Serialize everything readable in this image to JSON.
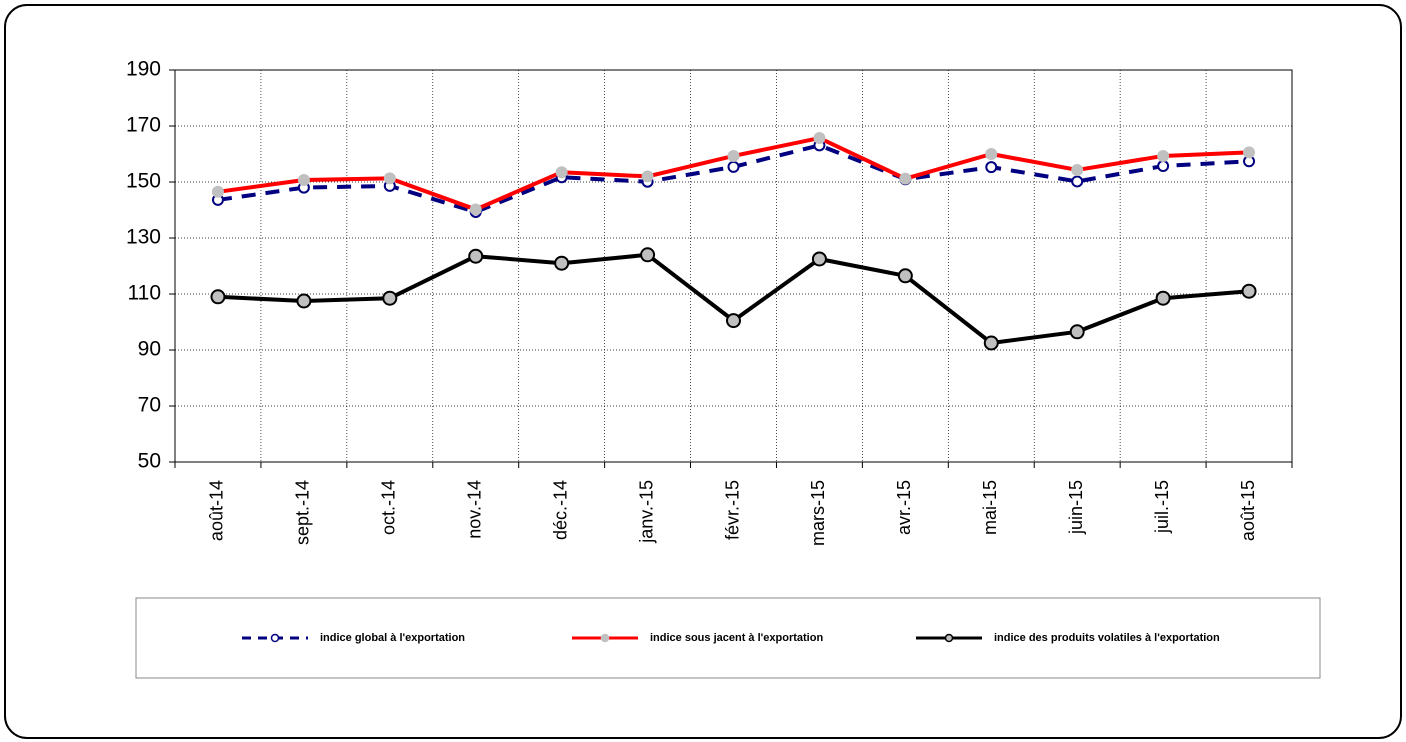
{
  "chart_data": {
    "type": "line",
    "categories": [
      "août-14",
      "sept.-14",
      "oct.-14",
      "nov.-14",
      "déc.-14",
      "janv.-15",
      "févr.-15",
      "mars-15",
      "avr.-15",
      "mai-15",
      "juin-15",
      "juil.-15",
      "août-15"
    ],
    "series": [
      {
        "name": "indice global à l'exportation",
        "color": "#000080",
        "values": [
          143.6,
          148,
          148.6,
          139.3,
          151.7,
          150.1,
          155.4,
          163.1,
          151,
          155.3,
          150.2,
          155.7,
          157.4
        ]
      },
      {
        "name": "indice sous jacent à l'exportation",
        "color": "#ff0000",
        "values": [
          146.5,
          150.7,
          151.3,
          140.2,
          153.5,
          152,
          159.3,
          165.7,
          151.2,
          160,
          154.3,
          159.3,
          160.6
        ]
      },
      {
        "name": "indice des produits volatiles à l'exportation",
        "color": "#000000",
        "values": [
          109,
          107.5,
          108.5,
          123.5,
          121,
          124,
          100.5,
          122.5,
          116.5,
          92.5,
          96.5,
          108.5,
          111
        ]
      }
    ],
    "ylim": [
      50,
      190
    ],
    "yticks": [
      50,
      70,
      90,
      110,
      130,
      150,
      170,
      190
    ],
    "grid": true,
    "legend": "bottom"
  }
}
